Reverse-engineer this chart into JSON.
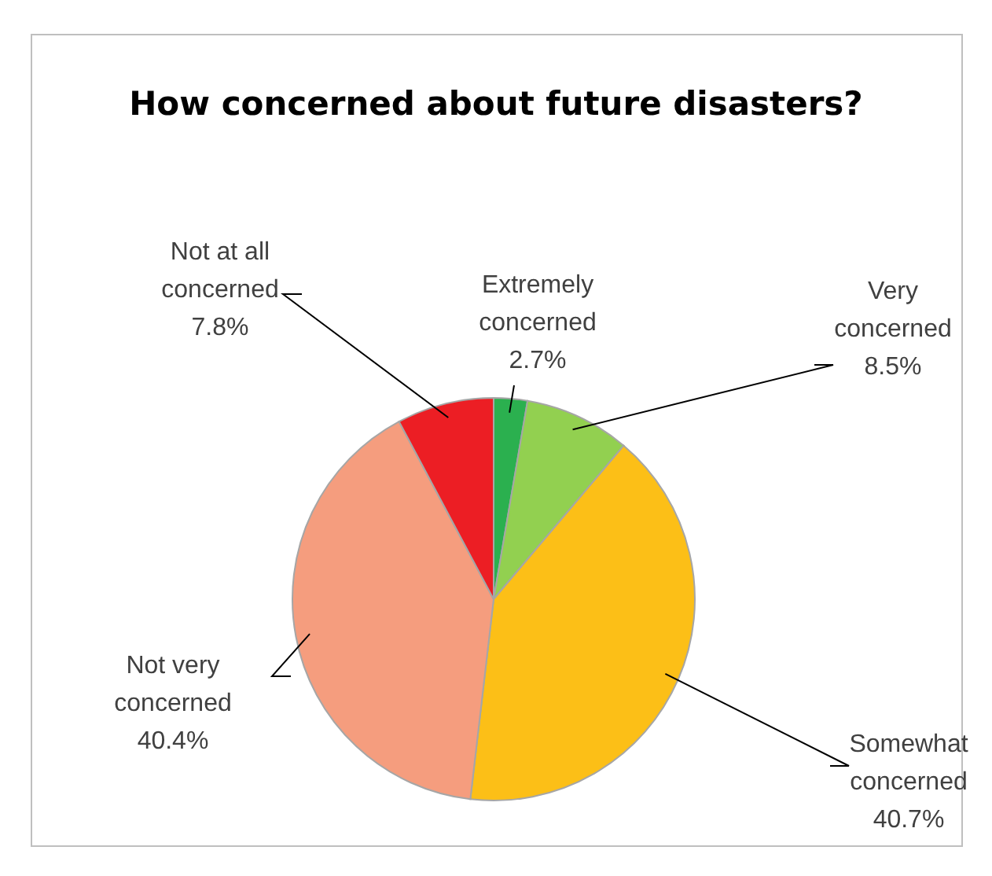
{
  "chart_data": {
    "type": "pie",
    "title": "How concerned about future disasters?",
    "categories": [
      "Extremely concerned",
      "Very concerned",
      "Somewhat concerned",
      "Not very concerned",
      "Not at all concerned"
    ],
    "values": [
      2.7,
      8.5,
      40.7,
      40.4,
      7.8
    ],
    "value_labels": [
      "2.7%",
      "8.5%",
      "40.7%",
      "40.4%",
      "7.8%"
    ],
    "colors": [
      "#2bb04f",
      "#92d050",
      "#fcbf17",
      "#f59d7e",
      "#ec1e24"
    ]
  }
}
